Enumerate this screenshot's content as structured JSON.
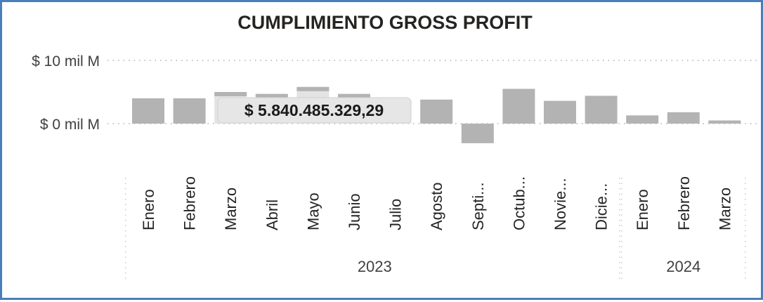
{
  "chart_data": {
    "type": "bar",
    "title": "CUMPLIMIENTO GROSS PROFIT",
    "ylabel": "",
    "xlabel": "",
    "y_ticks": [
      {
        "value": 0,
        "label": "$ 0 mil M"
      },
      {
        "value": 10,
        "label": "$ 10 mil M"
      }
    ],
    "ylim": [
      -3.5,
      10
    ],
    "categories": [
      "Enero",
      "Febrero",
      "Marzo",
      "Abril",
      "Mayo",
      "Junio",
      "Julio",
      "Agosto",
      "Septi...",
      "Octub...",
      "Novie...",
      "Dicie...",
      "Enero",
      "Febrero",
      "Marzo"
    ],
    "values": [
      4.0,
      4.0,
      5.0,
      4.7,
      5.8,
      4.7,
      3.6,
      3.8,
      -3.1,
      5.5,
      3.6,
      4.4,
      1.3,
      1.8,
      0.5
    ],
    "groups": [
      {
        "label": "2023",
        "count": 12
      },
      {
        "label": "2024",
        "count": 3
      }
    ],
    "bar_color": "#b3b3b3",
    "highlight_color": "#e3e3e3",
    "tooltip": {
      "text": "$ 5.840.485.329,29"
    },
    "grid": true
  }
}
